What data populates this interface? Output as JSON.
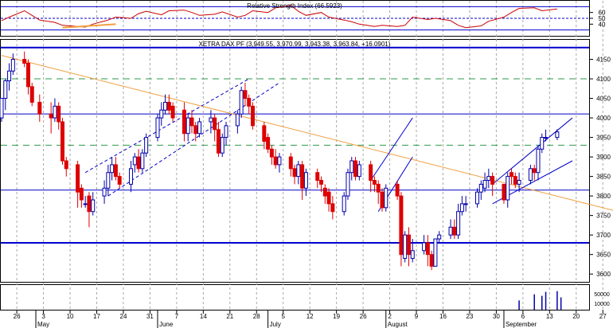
{
  "chart_data": [
    {
      "type": "line",
      "title": "Relative Strength Index (66.5923)",
      "ylim": [
        20,
        80
      ],
      "y_ticks": [
        40,
        50,
        60
      ],
      "levels": [
        30,
        50,
        70
      ],
      "series": [
        {
          "color": "#cc0000",
          "x": [
            "2003-04-22",
            "2003-04-24",
            "2003-04-28",
            "2003-04-30",
            "2003-05-02",
            "2003-05-06",
            "2003-05-08",
            "2003-05-12",
            "2003-05-14",
            "2003-05-16",
            "2003-05-20",
            "2003-05-22",
            "2003-05-26",
            "2003-05-28",
            "2003-05-30",
            "2003-06-03",
            "2003-06-05",
            "2003-06-09",
            "2003-06-11",
            "2003-06-13",
            "2003-06-17",
            "2003-06-19",
            "2003-06-23",
            "2003-06-25",
            "2003-06-27",
            "2003-07-01",
            "2003-07-03",
            "2003-07-07",
            "2003-07-09",
            "2003-07-11",
            "2003-07-15",
            "2003-07-17",
            "2003-07-21",
            "2003-07-23",
            "2003-07-25",
            "2003-07-29",
            "2003-07-31",
            "2003-08-04",
            "2003-08-06",
            "2003-08-08",
            "2003-08-12",
            "2003-08-14",
            "2003-08-18",
            "2003-08-20",
            "2003-08-22",
            "2003-08-26",
            "2003-08-28",
            "2003-09-01",
            "2003-09-03",
            "2003-09-05",
            "2003-09-09",
            "2003-09-11",
            "2003-09-15"
          ],
          "values": [
            46,
            52,
            63,
            55,
            47,
            43,
            38,
            36,
            35,
            40,
            47,
            52,
            50,
            58,
            62,
            56,
            63,
            64,
            60,
            55,
            57,
            61,
            52,
            55,
            63,
            60,
            68,
            72,
            62,
            55,
            60,
            52,
            47,
            44,
            40,
            36,
            38,
            36,
            38,
            52,
            48,
            50,
            46,
            38,
            34,
            37,
            45,
            52,
            60,
            67,
            68,
            63,
            66
          ]
        }
      ]
    },
    {
      "type": "candlestick",
      "title": "XETRA DAX PF (3,949.55, 3,970.99, 3,943.38, 3,963.84, +16.0901)",
      "ylim": [
        3580,
        4200
      ],
      "y_ticks": [
        3600,
        3650,
        3700,
        3750,
        3800,
        3850,
        3900,
        3950,
        4000,
        4050,
        4100,
        4150
      ],
      "x_tick_labels": [
        "26",
        "3",
        "10",
        "17",
        "24",
        "31",
        "7",
        "14",
        "21",
        "28",
        "5",
        "12",
        "19",
        "26",
        "2",
        "9",
        "16",
        "23",
        "30",
        "6",
        "13",
        "20",
        "27"
      ],
      "month_labels": [
        "May",
        "June",
        "July",
        "August",
        "September"
      ],
      "horizontal_lines": [
        3680,
        3815,
        4010,
        4180
      ],
      "dashed_levels": [
        3930,
        4100
      ],
      "trendline": {
        "start": [
          "2003-04-22",
          4160
        ],
        "end": [
          "2003-10-03",
          3755
        ]
      },
      "candles": {
        "dates": [
          "2003-04-22",
          "2003-04-23",
          "2003-04-24",
          "2003-04-25",
          "2003-04-28",
          "2003-04-29",
          "2003-04-30",
          "2003-05-02",
          "2003-05-05",
          "2003-05-06",
          "2003-05-07",
          "2003-05-08",
          "2003-05-09",
          "2003-05-12",
          "2003-05-13",
          "2003-05-14",
          "2003-05-15",
          "2003-05-16",
          "2003-05-19",
          "2003-05-20",
          "2003-05-21",
          "2003-05-22",
          "2003-05-23",
          "2003-05-26",
          "2003-05-27",
          "2003-05-28",
          "2003-05-29",
          "2003-05-30",
          "2003-06-02",
          "2003-06-03",
          "2003-06-04",
          "2003-06-05",
          "2003-06-06",
          "2003-06-09",
          "2003-06-10",
          "2003-06-11",
          "2003-06-12",
          "2003-06-13",
          "2003-06-16",
          "2003-06-17",
          "2003-06-18",
          "2003-06-19",
          "2003-06-20",
          "2003-06-23",
          "2003-06-24",
          "2003-06-25",
          "2003-06-26",
          "2003-06-27",
          "2003-06-30",
          "2003-07-01",
          "2003-07-02",
          "2003-07-03",
          "2003-07-04",
          "2003-07-07",
          "2003-07-08",
          "2003-07-09",
          "2003-07-10",
          "2003-07-11",
          "2003-07-14",
          "2003-07-15",
          "2003-07-16",
          "2003-07-17",
          "2003-07-18",
          "2003-07-21",
          "2003-07-22",
          "2003-07-23",
          "2003-07-24",
          "2003-07-25",
          "2003-07-28",
          "2003-07-29",
          "2003-07-30",
          "2003-07-31",
          "2003-08-01",
          "2003-08-04",
          "2003-08-05",
          "2003-08-06",
          "2003-08-07",
          "2003-08-08",
          "2003-08-11",
          "2003-08-12",
          "2003-08-13",
          "2003-08-14",
          "2003-08-15",
          "2003-08-18",
          "2003-08-19",
          "2003-08-20",
          "2003-08-21",
          "2003-08-22",
          "2003-08-25",
          "2003-08-26",
          "2003-08-27",
          "2003-08-28",
          "2003-08-29",
          "2003-09-01",
          "2003-09-02",
          "2003-09-03",
          "2003-09-04",
          "2003-09-05",
          "2003-09-08",
          "2003-09-09",
          "2003-09-10",
          "2003-09-11",
          "2003-09-12",
          "2003-09-15"
        ],
        "open": [
          4000,
          4050,
          4095,
          4120,
          4150,
          4140,
          4080,
          4040,
          4010,
          4000,
          4030,
          3990,
          3890,
          3880,
          3820,
          3780,
          3800,
          3760,
          3800,
          3820,
          3860,
          3880,
          3850,
          3830,
          3880,
          3900,
          3870,
          3910,
          3950,
          4000,
          4020,
          4040,
          4030,
          4020,
          3960,
          4000,
          3980,
          3960,
          3990,
          4000,
          3970,
          3910,
          3950,
          3980,
          4010,
          4070,
          4050,
          4030,
          3980,
          3950,
          3920,
          3900,
          3880,
          3900,
          3870,
          3850,
          3880,
          3820,
          3860,
          3840,
          3820,
          3810,
          3780,
          3760,
          3800,
          3860,
          3890,
          3850,
          3880,
          3840,
          3830,
          3810,
          3770,
          3830,
          3800,
          3640,
          3700,
          3640,
          3660,
          3680,
          3650,
          3620,
          3690,
          3700,
          3720,
          3700,
          3760,
          3780,
          3780,
          3810,
          3820,
          3840,
          3850,
          3830,
          3790,
          3860,
          3850,
          3830,
          3840,
          3870,
          3860,
          3920,
          3950,
          3950
        ],
        "high": [
          4040,
          4100,
          4140,
          4165,
          4170,
          4150,
          4090,
          4060,
          4040,
          4050,
          4040,
          4000,
          3900,
          3890,
          3830,
          3800,
          3810,
          3810,
          3840,
          3880,
          3900,
          3900,
          3860,
          3890,
          3910,
          3920,
          3920,
          3960,
          4010,
          4040,
          4060,
          4060,
          4040,
          4040,
          4010,
          4020,
          3990,
          4000,
          4020,
          4010,
          3990,
          3960,
          3990,
          4020,
          4080,
          4090,
          4060,
          4040,
          3990,
          3960,
          3930,
          3920,
          3910,
          3910,
          3880,
          3890,
          3890,
          3870,
          3870,
          3850,
          3830,
          3820,
          3800,
          3810,
          3870,
          3900,
          3900,
          3890,
          3890,
          3850,
          3840,
          3820,
          3830,
          3840,
          3810,
          3710,
          3720,
          3690,
          3700,
          3700,
          3660,
          3690,
          3710,
          3740,
          3740,
          3780,
          3800,
          3800,
          3820,
          3840,
          3860,
          3870,
          3860,
          3830,
          3860,
          3870,
          3860,
          3860,
          3880,
          3880,
          3930,
          3960,
          3970,
          3971
        ],
        "low": [
          3990,
          4020,
          4070,
          4110,
          4130,
          4060,
          4030,
          3990,
          3960,
          3990,
          3970,
          3880,
          3850,
          3770,
          3770,
          3770,
          3720,
          3750,
          3780,
          3800,
          3840,
          3840,
          3820,
          3810,
          3860,
          3860,
          3860,
          3900,
          3940,
          3980,
          4010,
          4010,
          3990,
          3940,
          3940,
          3960,
          3940,
          3950,
          3960,
          3940,
          3900,
          3900,
          3930,
          3960,
          4000,
          4030,
          4010,
          3970,
          3920,
          3910,
          3880,
          3870,
          3860,
          3850,
          3830,
          3830,
          3790,
          3800,
          3820,
          3810,
          3780,
          3760,
          3740,
          3750,
          3790,
          3840,
          3840,
          3840,
          3810,
          3810,
          3780,
          3760,
          3760,
          3790,
          3620,
          3630,
          3620,
          3630,
          3650,
          3620,
          3610,
          3620,
          3680,
          3690,
          3690,
          3690,
          3750,
          3760,
          3770,
          3790,
          3810,
          3820,
          3800,
          3780,
          3770,
          3830,
          3820,
          3810,
          3830,
          3840,
          3840,
          3910,
          3940,
          3943
        ],
        "close": [
          4050,
          4095,
          4120,
          4150,
          4140,
          4080,
          4040,
          4010,
          4000,
          4030,
          3990,
          3890,
          3870,
          3810,
          3790,
          3780,
          3760,
          3790,
          3820,
          3860,
          3880,
          3850,
          3830,
          3870,
          3900,
          3870,
          3910,
          3950,
          4000,
          4020,
          4040,
          4020,
          4000,
          3960,
          4000,
          3980,
          3960,
          3990,
          4000,
          3970,
          3910,
          3950,
          3980,
          4010,
          4070,
          4050,
          4030,
          3980,
          3940,
          3920,
          3900,
          3880,
          3900,
          3870,
          3850,
          3880,
          3820,
          3860,
          3840,
          3830,
          3800,
          3780,
          3760,
          3800,
          3860,
          3890,
          3850,
          3880,
          3840,
          3830,
          3810,
          3770,
          3820,
          3800,
          3650,
          3700,
          3650,
          3660,
          3680,
          3650,
          3620,
          3690,
          3700,
          3720,
          3700,
          3760,
          3780,
          3780,
          3810,
          3830,
          3840,
          3850,
          3830,
          3790,
          3850,
          3850,
          3830,
          3840,
          3870,
          3860,
          3920,
          3950,
          3950,
          3964
        ]
      },
      "channels": [
        {
          "style": "dashed",
          "lines": [
            [
              [
                "2003-05-14",
                3860
              ],
              [
                "2003-06-26",
                4100
              ]
            ],
            [
              [
                "2003-05-20",
                3800
              ],
              [
                "2003-07-04",
                4090
              ]
            ]
          ]
        },
        {
          "style": "solid",
          "lines": [
            [
              [
                "2003-07-28",
                3840
              ],
              [
                "2003-08-08",
                4000
              ]
            ],
            [
              [
                "2003-07-30",
                3760
              ],
              [
                "2003-08-08",
                3900
              ]
            ]
          ]
        },
        {
          "style": "solid",
          "lines": [
            [
              [
                "2003-08-29",
                3830
              ],
              [
                "2003-09-19",
                4000
              ]
            ],
            [
              [
                "2003-08-29",
                3780
              ],
              [
                "2003-09-19",
                3890
              ]
            ]
          ]
        }
      ]
    },
    {
      "type": "bar",
      "title": "",
      "y_ticks": [
        50000,
        10000
      ],
      "y_tick_labels": [
        "50000",
        "10000"
      ],
      "dates": [
        "2003-09-05",
        "2003-09-09",
        "2003-09-11",
        "2003-09-12",
        "2003-09-15",
        "2003-09-16"
      ],
      "values": [
        30000,
        50000,
        45000,
        58000,
        60000,
        40000
      ]
    }
  ]
}
